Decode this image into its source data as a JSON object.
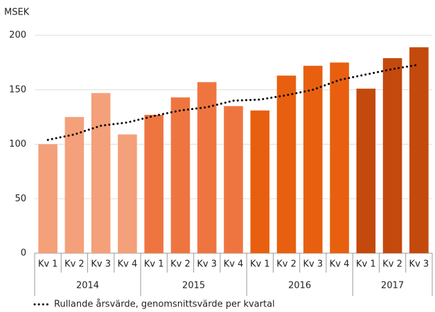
{
  "chart_data": {
    "type": "bar",
    "ylabel": "MSEK",
    "ylim": [
      0,
      200
    ],
    "yticks": [
      0,
      50,
      100,
      150,
      200
    ],
    "grid": true,
    "groups": [
      {
        "label": "2014",
        "color": "#f4a07a",
        "categories": [
          "Kv 1",
          "Kv 2",
          "Kv 3",
          "Kv 4"
        ],
        "values": [
          100,
          125,
          147,
          109
        ]
      },
      {
        "label": "2015",
        "color": "#ef7540",
        "categories": [
          "Kv 1",
          "Kv 2",
          "Kv 3",
          "Kv 4"
        ],
        "values": [
          127,
          143,
          157,
          135
        ]
      },
      {
        "label": "2016",
        "color": "#e8600f",
        "categories": [
          "Kv 1",
          "Kv 2",
          "Kv 3",
          "Kv 4"
        ],
        "values": [
          131,
          163,
          172,
          175
        ]
      },
      {
        "label": "2017",
        "color": "#c4490c",
        "categories": [
          "Kv 1",
          "Kv 2",
          "Kv 3"
        ],
        "values": [
          151,
          179,
          189
        ]
      }
    ],
    "line": {
      "name": "Rullande årsvärde, genomsnittsvärde per kvartal",
      "color": "#000000",
      "values": [
        104,
        109,
        117,
        120,
        126,
        131,
        134,
        140,
        141,
        145,
        150,
        159,
        164,
        169,
        173
      ]
    }
  }
}
